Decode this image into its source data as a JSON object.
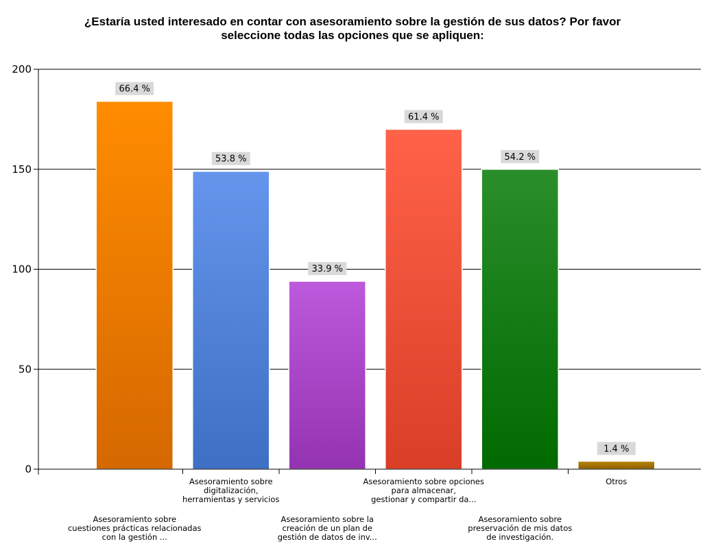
{
  "chart_data": {
    "type": "bar",
    "title": "¿Estaría usted interesado en contar con asesoramiento sobre la gestión de sus datos? Por favor seleccione todas las opciones que se apliquen:",
    "title_lines": [
      "¿Estaría usted interesado en contar con asesoramiento sobre la gestión de sus datos? Por favor",
      "seleccione todas las opciones que se apliquen:"
    ],
    "categories": [
      "Asesoramiento sobre cuestiones prácticas relacionadas con la gestión ...",
      "Asesoramiento sobre digitalización, herramientas y servicios",
      "Asesoramiento sobre la creación de un plan de gestión de datos de inv...",
      "Asesoramiento sobre opciones para almacenar, gestionar y compartir da...",
      "Asesoramiento sobre preservación de mis datos de investigación.",
      "Otros"
    ],
    "category_label_lines": [
      [
        "Asesoramiento sobre",
        "cuestiones prácticas relacionadas",
        "con la gestión ..."
      ],
      [
        "Asesoramiento sobre",
        "digitalización,",
        "herramientas y servicios"
      ],
      [
        "Asesoramiento sobre la",
        "creación de un plan de",
        "gestión de datos de inv..."
      ],
      [
        "Asesoramiento sobre opciones",
        "para almacenar,",
        "gestionar y compartir da..."
      ],
      [
        "Asesoramiento sobre",
        "preservación de mis datos",
        "de investigación."
      ],
      [
        "Otros"
      ]
    ],
    "category_label_row": [
      "lower",
      "upper",
      "lower",
      "upper",
      "lower",
      "upper"
    ],
    "values": [
      184,
      149,
      94,
      170,
      150,
      4
    ],
    "data_labels": [
      "66.4 %",
      "53.8 %",
      "33.9 %",
      "61.4 %",
      "54.2 %",
      "1.4 %"
    ],
    "colors": [
      [
        "#ff8c00",
        "#d56800"
      ],
      [
        "#6595ec",
        "#3d6fc4"
      ],
      [
        "#bd59dc",
        "#9433b1"
      ],
      [
        "#ff6249",
        "#d93e26"
      ],
      [
        "#2a8e2a",
        "#006a00"
      ],
      [
        "#b8860b",
        "#8e6000"
      ]
    ],
    "ylim": [
      0,
      200
    ],
    "yticks": [
      0,
      50,
      100,
      150,
      200
    ],
    "ytick_labels": [
      "0",
      "50",
      "100",
      "150",
      "200"
    ],
    "xlabel": "",
    "ylabel": "",
    "grid": true
  }
}
